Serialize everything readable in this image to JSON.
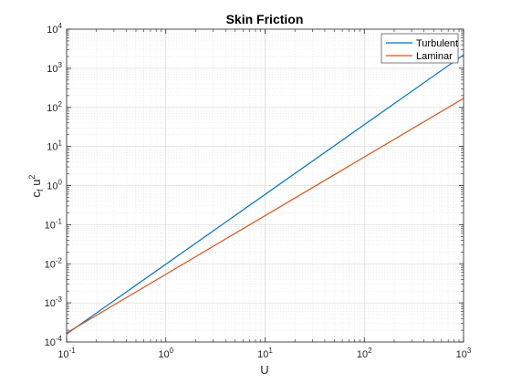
{
  "chart_data": {
    "type": "line",
    "title": "Skin Friction",
    "xlabel": "U",
    "ylabel_base": "c",
    "ylabel_sub": "f",
    "ylabel_mid": " u",
    "ylabel_sup": "2",
    "x_scale": "log",
    "y_scale": "log",
    "xlim": [
      0.1,
      1000
    ],
    "ylim": [
      0.0001,
      10000
    ],
    "x_tick_exponents": [
      "-1",
      "0",
      "1",
      "2",
      "3"
    ],
    "y_tick_exponents": [
      "-4",
      "-3",
      "-2",
      "-1",
      "0",
      "1",
      "2",
      "3",
      "4"
    ],
    "tick_base": "10",
    "grid": true,
    "minor_grid": true,
    "legend_position": "top-right",
    "series": [
      {
        "name": "Turbulent",
        "color": "#0072BD",
        "x": [
          0.1,
          1000
        ],
        "y": [
          0.00016,
          2200
        ]
      },
      {
        "name": "Laminar",
        "color": "#D95319",
        "x": [
          0.1,
          1000
        ],
        "y": [
          0.00017,
          170
        ]
      }
    ]
  }
}
